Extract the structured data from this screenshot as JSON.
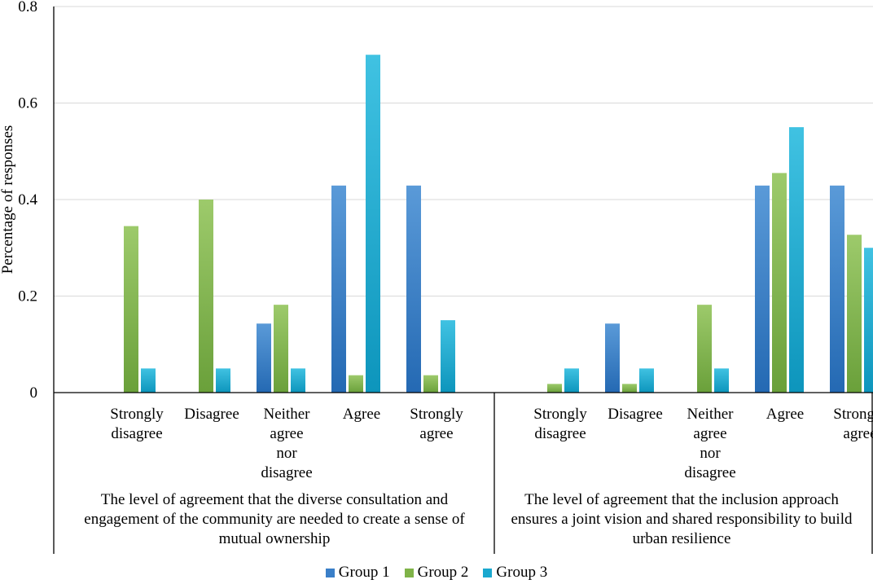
{
  "chart_data": {
    "type": "bar",
    "ylabel": "Percentage of responses",
    "ylim": [
      0,
      0.8
    ],
    "yticks": [
      "0",
      "0.2",
      "0.4",
      "0.6",
      "0.8"
    ],
    "grid": true,
    "legend_position": "bottom",
    "series": [
      {
        "name": "Group 1",
        "color": "#3a7fc8",
        "colorLight": "#5a9ad8",
        "colorDark": "#2469b3"
      },
      {
        "name": "Group 2",
        "color": "#7fb348",
        "colorLight": "#9dca6b",
        "colorDark": "#6aa03a"
      },
      {
        "name": "Group 3",
        "color": "#1aa8cf",
        "colorLight": "#40c2e2",
        "colorDark": "#0d95bc"
      }
    ],
    "groups": [
      {
        "label_lines": [
          "The level of agreement that the diverse consultation and",
          "engagement of the community are needed to create a sense of",
          "mutual ownership"
        ],
        "categories": [
          {
            "label_lines": [
              "Strongly",
              "disagree"
            ],
            "values": [
              0,
              0.345,
              0.05
            ]
          },
          {
            "label_lines": [
              "Disagree"
            ],
            "values": [
              0,
              0.4,
              0.05
            ]
          },
          {
            "label_lines": [
              "Neither",
              "agree",
              "nor",
              "disagree"
            ],
            "values": [
              0.143,
              0.182,
              0.05
            ]
          },
          {
            "label_lines": [
              "Agree"
            ],
            "values": [
              0.429,
              0.036,
              0.7
            ]
          },
          {
            "label_lines": [
              "Strongly",
              "agree"
            ],
            "values": [
              0.429,
              0.036,
              0.15
            ]
          }
        ]
      },
      {
        "label_lines": [
          "The level of agreement that the inclusion approach",
          "ensures a joint vision and shared responsibility to build",
          "urban resilience"
        ],
        "categories": [
          {
            "label_lines": [
              "Strongly",
              "disagree"
            ],
            "values": [
              0,
              0.018,
              0.05
            ]
          },
          {
            "label_lines": [
              "Disagree"
            ],
            "values": [
              0.143,
              0.018,
              0.05
            ]
          },
          {
            "label_lines": [
              "Neither",
              "agree",
              "nor",
              "disagree"
            ],
            "values": [
              0,
              0.182,
              0.05
            ]
          },
          {
            "label_lines": [
              "Agree"
            ],
            "values": [
              0.429,
              0.455,
              0.55
            ]
          },
          {
            "label_lines": [
              "Strongly",
              "agree"
            ],
            "values": [
              0.429,
              0.327,
              0.3
            ]
          }
        ]
      }
    ]
  }
}
